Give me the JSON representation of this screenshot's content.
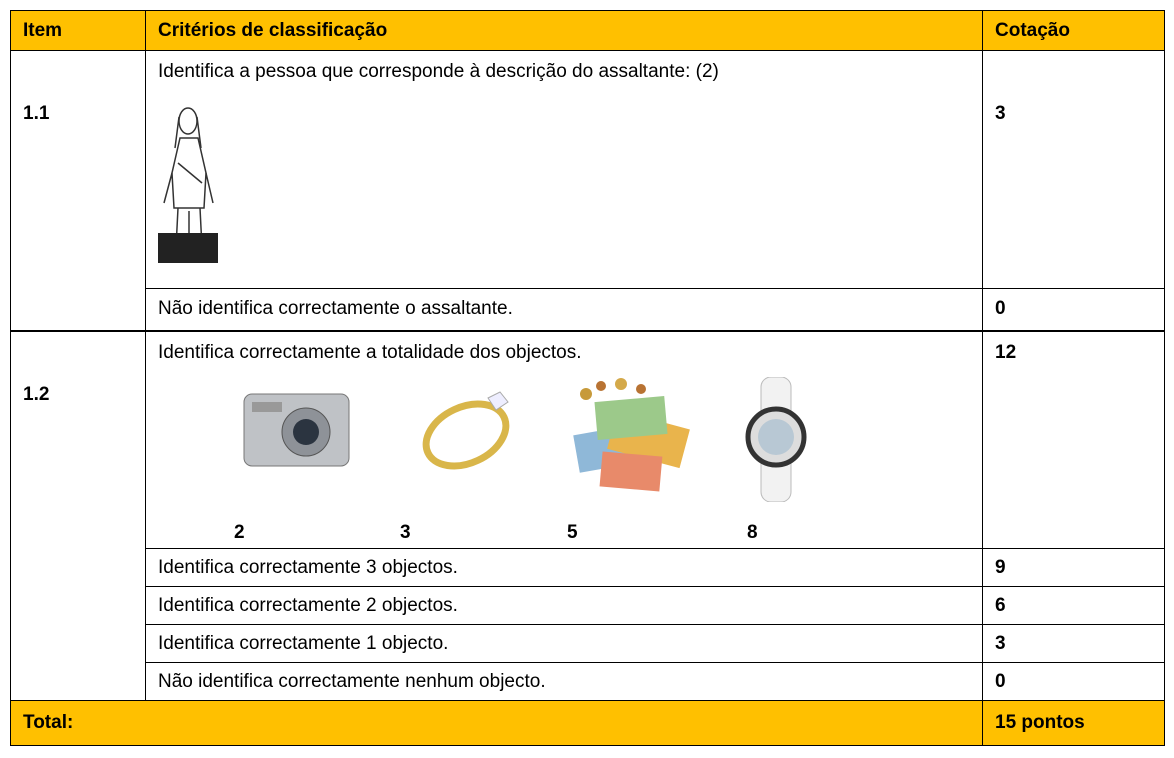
{
  "table": {
    "header": [
      "Item",
      "Critérios de classificação",
      "Cotação"
    ],
    "items": [
      {
        "item": "1.1",
        "criteria": [
          {
            "text": "Identifica a pessoa que corresponde à descrição do assaltante: (2)",
            "score": 3
          },
          {
            "text": "Não identifica correctamente o assaltante.",
            "score": 0
          }
        ]
      },
      {
        "item": "1.2",
        "criteria": [
          {
            "text": "Identifica correctamente a totalidade dos objectos.",
            "score": 12,
            "image_labels": [
              2,
              3,
              5,
              8
            ]
          },
          {
            "text": "Identifica correctamente 3 objectos.",
            "score": 9
          },
          {
            "text": "Identifica correctamente 2 objectos.",
            "score": 6
          },
          {
            "text": "Identifica correctamente 1 objecto.",
            "score": 3
          },
          {
            "text": "Não identifica correctamente nenhum objecto.",
            "score": 0
          }
        ]
      }
    ],
    "total": {
      "label": "Total:",
      "score": "15 pontos"
    }
  }
}
